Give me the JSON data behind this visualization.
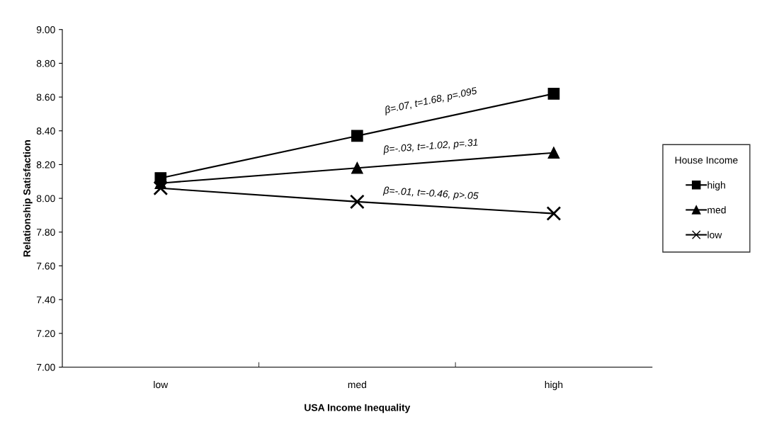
{
  "chart_data": {
    "type": "line",
    "xlabel": "USA Income Inequality",
    "ylabel": "Relationship Satisfaction",
    "legend_title": "House Income",
    "categories": [
      "low",
      "med",
      "high"
    ],
    "series": [
      {
        "name": "high",
        "color": "#000000",
        "marker": "square",
        "values": [
          8.12,
          8.37,
          8.62
        ]
      },
      {
        "name": "med",
        "color": "#000000",
        "marker": "triangle",
        "values": [
          8.09,
          8.18,
          8.27
        ]
      },
      {
        "name": "low",
        "color": "#000000",
        "marker": "cross",
        "values": [
          8.06,
          7.98,
          7.91
        ]
      }
    ],
    "ylim": [
      7.0,
      9.0
    ],
    "yticks": [
      {
        "value": 7.0,
        "label": "7.00"
      },
      {
        "value": 7.2,
        "label": "7.20"
      },
      {
        "value": 7.4,
        "label": "7.40"
      },
      {
        "value": 7.6,
        "label": "7.60"
      },
      {
        "value": 7.8,
        "label": "7.80"
      },
      {
        "value": 8.0,
        "label": "8.00"
      },
      {
        "value": 8.2,
        "label": "8.20"
      },
      {
        "value": 8.4,
        "label": "8.40"
      },
      {
        "value": 8.6,
        "label": "8.60"
      },
      {
        "value": 8.8,
        "label": "8.80"
      },
      {
        "value": 9.0,
        "label": "9.00"
      }
    ],
    "annotations": [
      "β=.07, t=1.68, p=.095",
      "β=-.03, t=-1.02, p=.31",
      "β=-.01, t=-0.46, p>.05"
    ],
    "grid": false,
    "legend": "right",
    "line_style": "solid"
  }
}
